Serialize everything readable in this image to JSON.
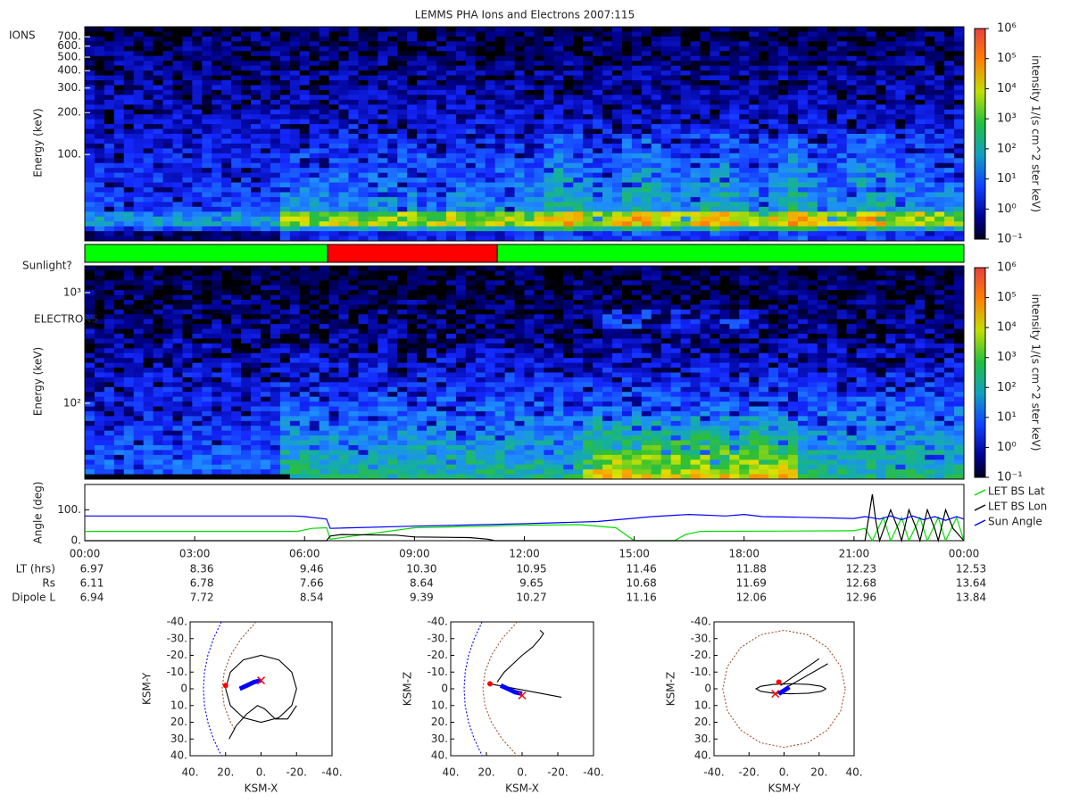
{
  "chart_data": [
    {
      "type": "heatmap",
      "title": "LEMMS PHA Ions and Electrons  2007:115",
      "label": "IONS",
      "ylabel": "Energy (keV)",
      "xlim": [
        0,
        24
      ],
      "ylim": [
        24,
        826
      ],
      "yscale": "log",
      "yticks": [
        {
          "value": 100,
          "label": "100."
        },
        {
          "value": 200,
          "label": "200."
        },
        {
          "value": 300,
          "label": "300."
        },
        {
          "value": 400,
          "label": "400."
        },
        {
          "value": 500,
          "label": "500."
        },
        {
          "value": 600,
          "label": "600."
        },
        {
          "value": 700,
          "label": "700."
        }
      ],
      "colorbar": {
        "label": "intensity 1/(s cm^2 ster keV)",
        "lim": [
          0.1,
          1000000
        ],
        "ticks": [
          {
            "value": 0.1,
            "label": "10⁻¹"
          },
          {
            "value": 1,
            "label": "10⁰"
          },
          {
            "value": 10,
            "label": "10¹"
          },
          {
            "value": 100,
            "label": "10²"
          },
          {
            "value": 1000,
            "label": "10³"
          },
          {
            "value": 10000,
            "label": "10⁴"
          },
          {
            "value": 100000,
            "label": "10⁵"
          },
          {
            "value": 1000000,
            "label": "10⁶"
          }
        ]
      }
    },
    {
      "type": "timeline",
      "label": "Sunlight?",
      "xlim": [
        0,
        24
      ],
      "segments": [
        {
          "start": 0,
          "end": 6.63,
          "color": "#00ff00"
        },
        {
          "start": 6.63,
          "end": 11.26,
          "color": "#ff0000"
        },
        {
          "start": 11.26,
          "end": 24,
          "color": "#00ff00"
        }
      ]
    },
    {
      "type": "heatmap",
      "label": "ELECTRONS",
      "ylabel": "Energy (keV)",
      "xlim": [
        0,
        24
      ],
      "ylim": [
        20.6,
        1745
      ],
      "yscale": "log",
      "yticks": [
        {
          "value": 100,
          "label": "10²"
        },
        {
          "value": 1000,
          "label": "10³"
        }
      ],
      "colorbar": {
        "label": "intensity 1/(s cm^2 ster keV)",
        "lim": [
          0.1,
          1000000
        ],
        "ticks": [
          {
            "value": 0.1,
            "label": "10⁻¹"
          },
          {
            "value": 1,
            "label": "10⁰"
          },
          {
            "value": 10,
            "label": "10¹"
          },
          {
            "value": 100,
            "label": "10²"
          },
          {
            "value": 1000,
            "label": "10³"
          },
          {
            "value": 10000,
            "label": "10⁴"
          },
          {
            "value": 100000,
            "label": "10⁵"
          },
          {
            "value": 1000000,
            "label": "10⁶"
          }
        ]
      }
    },
    {
      "type": "line",
      "ylabel": "Angle (deg)",
      "xlim": [
        0,
        24
      ],
      "ylim": [
        0,
        182
      ],
      "yticks": [
        {
          "value": 0,
          "label": "0."
        },
        {
          "value": 100,
          "label": "100."
        }
      ],
      "xticks": [
        {
          "value": 0,
          "label": "00:00"
        },
        {
          "value": 3,
          "label": "03:00"
        },
        {
          "value": 6,
          "label": "06:00"
        },
        {
          "value": 9,
          "label": "09:00"
        },
        {
          "value": 12,
          "label": "12:00"
        },
        {
          "value": 15,
          "label": "15:00"
        },
        {
          "value": 18,
          "label": "18:00"
        },
        {
          "value": 21,
          "label": "21:00"
        },
        {
          "value": 24,
          "label": "00:00"
        }
      ],
      "series": [
        {
          "name": "LET BS Lat",
          "color": "#00dd00",
          "x": [
            0,
            5.8,
            6.2,
            6.6,
            6.7,
            9,
            12,
            13.5,
            14.5,
            15,
            16.1,
            16.4,
            16.8,
            21,
            21.3,
            21.5,
            21.8,
            22.0,
            22.3,
            22.5,
            22.8,
            23.0,
            23.3,
            23.5,
            23.8,
            24
          ],
          "values": [
            30,
            30,
            40,
            42,
            5,
            42,
            50,
            52,
            42,
            0,
            0,
            20,
            30,
            32,
            40,
            0,
            75,
            0,
            75,
            0,
            75,
            0,
            75,
            0,
            75,
            0
          ]
        },
        {
          "name": "LET BS Lon",
          "color": "#000000",
          "x": [
            0,
            6.6,
            6.7,
            7.0,
            8.5,
            9,
            10.5,
            11,
            11.2,
            12,
            21.3,
            21.5,
            21.6,
            21.7,
            22.0,
            22.2,
            22.3,
            22.5,
            22.7,
            22.8,
            23.0,
            23.2,
            23.3,
            23.5,
            23.7,
            24
          ],
          "values": [
            0,
            0,
            15,
            20,
            18,
            12,
            10,
            5,
            0,
            0,
            0,
            150,
            60,
            0,
            100,
            40,
            0,
            100,
            40,
            0,
            100,
            40,
            0,
            100,
            40,
            0
          ]
        },
        {
          "name": "Sun Angle",
          "color": "#0000ff",
          "x": [
            0,
            5.7,
            6.0,
            6.6,
            6.7,
            9,
            12,
            14,
            15.5,
            16.5,
            17.5,
            18,
            18.5,
            19.5,
            21,
            21.3,
            21.7,
            22.0,
            22.3,
            22.6,
            22.9,
            23.2,
            23.5,
            23.8,
            24
          ],
          "values": [
            80,
            80,
            78,
            70,
            40,
            47,
            55,
            62,
            78,
            85,
            80,
            85,
            78,
            76,
            72,
            78,
            70,
            80,
            68,
            80,
            68,
            78,
            66,
            78,
            70
          ]
        }
      ]
    },
    {
      "type": "table",
      "rows": [
        [
          "LT (hrs)",
          "6.97",
          "8.36",
          "9.46",
          "10.30",
          "10.95",
          "11.46",
          "11.88",
          "12.23",
          "12.53"
        ],
        [
          "Rs",
          "6.11",
          "6.78",
          "7.66",
          "8.64",
          "9.65",
          "10.68",
          "11.69",
          "12.68",
          "13.64"
        ],
        [
          "Dipole L",
          "6.94",
          "7.72",
          "8.54",
          "9.39",
          "10.27",
          "11.16",
          "12.06",
          "12.96",
          "13.84"
        ]
      ]
    },
    {
      "type": "orbit",
      "xlabel": "KSM-X",
      "ylabel": "KSM-Y",
      "xlim": [
        40,
        -40
      ],
      "ylim": [
        40,
        -40
      ],
      "xticks": [
        {
          "value": 40,
          "label": "40."
        },
        {
          "value": 20,
          "label": "20."
        },
        {
          "value": 0,
          "label": "0."
        },
        {
          "value": -20,
          "label": "-20."
        },
        {
          "value": -40,
          "label": "-40."
        }
      ],
      "yticks": [
        {
          "value": -40,
          "label": "-40."
        },
        {
          "value": -30,
          "label": "-30."
        },
        {
          "value": -20,
          "label": "-20."
        },
        {
          "value": -10,
          "label": "-10."
        },
        0,
        {
          "value": 10,
          "label": "10."
        },
        {
          "value": 20,
          "label": "20."
        },
        {
          "value": 30,
          "label": "30."
        },
        {
          "value": 40,
          "label": "40."
        }
      ],
      "series": [
        {
          "color": "#a0522d",
          "style": "dashed",
          "x": [
            2.8,
            11.2,
            17.2,
            20.8,
            22,
            20.8,
            17.2,
            14.5
          ],
          "y": [
            -40,
            -30,
            -20,
            -10,
            0,
            10,
            20,
            25
          ]
        },
        {
          "color": "#0000ff",
          "style": "dashed",
          "x": [
            22.4,
            26.8,
            30,
            31.9,
            32.5,
            31.9,
            30,
            26.8,
            22.4
          ],
          "y": [
            -40,
            -30,
            -20,
            -10,
            0,
            10,
            20,
            30,
            40
          ]
        },
        {
          "color": "#000000",
          "style": "line",
          "x": [
            20,
            17.3,
            10,
            0,
            -10,
            -17.3,
            -20,
            -17.3,
            -10,
            0,
            10,
            17.3,
            20
          ],
          "y": [
            0,
            10,
            17.3,
            20,
            17.3,
            10,
            0,
            -10,
            -17.3,
            -20,
            -17.3,
            -10,
            0
          ]
        },
        {
          "color": "#000000",
          "style": "line",
          "x": [
            18,
            14,
            8,
            2,
            -2,
            -8,
            -15,
            -20
          ],
          "y": [
            30,
            22,
            15,
            10,
            12,
            18,
            18,
            10
          ]
        },
        {
          "color": "#0000ff",
          "style": "thick",
          "x": [
            12,
            8,
            4,
            0
          ],
          "y": [
            0,
            -2,
            -4,
            -5
          ]
        },
        {
          "color": "#ff0000",
          "style": "dot",
          "x": [
            20
          ],
          "y": [
            -2
          ]
        },
        {
          "color": "#ff0000",
          "style": "cross",
          "x": [
            0
          ],
          "y": [
            -5
          ]
        }
      ]
    },
    {
      "type": "orbit",
      "xlabel": "KSM-X",
      "ylabel": "KSM-Z",
      "xlim": [
        40,
        -40
      ],
      "ylim": [
        40,
        -40
      ],
      "xticks": [
        {
          "value": 40,
          "label": "40."
        },
        {
          "value": 20,
          "label": "20."
        },
        {
          "value": 0,
          "label": "0."
        },
        {
          "value": -20,
          "label": "-20."
        },
        {
          "value": -40,
          "label": "-40."
        }
      ],
      "yticks": [
        {
          "value": -40,
          "label": "-40."
        },
        {
          "value": -30,
          "label": "-30."
        },
        {
          "value": -20,
          "label": "-20."
        },
        {
          "value": -10,
          "label": "-10."
        },
        0,
        {
          "value": 10,
          "label": "10."
        },
        {
          "value": 20,
          "label": "20."
        },
        {
          "value": 30,
          "label": "30."
        },
        {
          "value": 40,
          "label": "40."
        }
      ],
      "series": [
        {
          "color": "#a0522d",
          "style": "dashed",
          "x": [
            2.8,
            11.2,
            17.2,
            20.8,
            22,
            20.8,
            17.2,
            11.2,
            2.8
          ],
          "y": [
            -40,
            -30,
            -20,
            -10,
            0,
            10,
            20,
            30,
            40
          ]
        },
        {
          "color": "#0000ff",
          "style": "dashed",
          "x": [
            22.4,
            26.8,
            30,
            31.9,
            32.5,
            31.9,
            30,
            26.8,
            22.4
          ],
          "y": [
            -40,
            -30,
            -20,
            -10,
            0,
            10,
            20,
            30,
            40
          ]
        },
        {
          "color": "#000000",
          "style": "line",
          "x": [
            18,
            -22
          ],
          "y": [
            -3,
            5
          ]
        },
        {
          "color": "#000000",
          "style": "line",
          "x": [
            14,
            10,
            5,
            0,
            -6,
            -10,
            -12,
            -10
          ],
          "y": [
            -4,
            -10,
            -15,
            -20,
            -25,
            -30,
            -33,
            -35
          ]
        },
        {
          "color": "#0000ff",
          "style": "thick",
          "x": [
            12,
            8,
            4,
            0
          ],
          "y": [
            -2,
            0,
            2,
            3
          ]
        },
        {
          "color": "#ff0000",
          "style": "dot",
          "x": [
            18
          ],
          "y": [
            -3
          ]
        },
        {
          "color": "#ff0000",
          "style": "cross",
          "x": [
            0
          ],
          "y": [
            4
          ]
        }
      ]
    },
    {
      "type": "orbit",
      "xlabel": "KSM-Y",
      "ylabel": "KSM-Z",
      "xlim": [
        -40,
        40
      ],
      "ylim": [
        40,
        -40
      ],
      "xticks": [
        {
          "value": -40,
          "label": "-40."
        },
        {
          "value": -20,
          "label": "-20."
        },
        {
          "value": 0,
          "label": "0."
        },
        {
          "value": 20,
          "label": "20."
        },
        {
          "value": 40,
          "label": "40."
        }
      ],
      "yticks": [
        {
          "value": -40,
          "label": "-40."
        },
        {
          "value": -30,
          "label": "-30."
        },
        {
          "value": -20,
          "label": "-20."
        },
        {
          "value": -10,
          "label": "-10."
        },
        0,
        {
          "value": 10,
          "label": "10."
        },
        {
          "value": 20,
          "label": "20."
        },
        {
          "value": 30,
          "label": "30."
        },
        {
          "value": 40,
          "label": "40."
        }
      ],
      "series": [
        {
          "color": "#a0522d",
          "style": "dashed",
          "x": [
            35,
            32.3,
            24.7,
            13.4,
            0,
            -13.4,
            -24.7,
            -32.3,
            -35,
            -32.3,
            -24.7,
            -13.4,
            0,
            13.4,
            24.7,
            32.3,
            35
          ],
          "y": [
            0,
            13.4,
            24.7,
            32.3,
            35,
            32.3,
            24.7,
            13.4,
            0,
            -13.4,
            -24.7,
            -32.3,
            -35,
            -32.3,
            -24.7,
            -13.4,
            0
          ]
        },
        {
          "color": "#000000",
          "style": "line",
          "x": [
            24,
            21.3,
            14,
            4,
            -6,
            -13.3,
            -16,
            -13.3,
            -6,
            4,
            14,
            21.3,
            24
          ],
          "y": [
            0,
            1.5,
            2.6,
            3,
            2.6,
            1.5,
            0,
            -1.5,
            -2.6,
            -3,
            -2.6,
            -1.5,
            0
          ]
        },
        {
          "color": "#000000",
          "style": "line",
          "x": [
            -2,
            20
          ],
          "y": [
            -2,
            -18
          ]
        },
        {
          "color": "#000000",
          "style": "line",
          "x": [
            0,
            25
          ],
          "y": [
            0,
            -15
          ]
        },
        {
          "color": "#0000ff",
          "style": "thick",
          "x": [
            -3,
            0,
            3
          ],
          "y": [
            3,
            1,
            -1
          ]
        },
        {
          "color": "#ff0000",
          "style": "dot",
          "x": [
            -3
          ],
          "y": [
            -4
          ]
        },
        {
          "color": "#ff0000",
          "style": "cross",
          "x": [
            -5
          ],
          "y": [
            3
          ]
        }
      ]
    }
  ]
}
